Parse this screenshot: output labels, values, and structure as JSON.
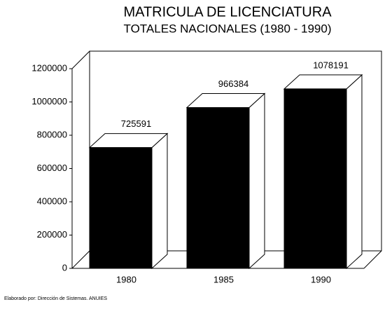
{
  "chart_data": {
    "type": "bar3d",
    "title": "MATRICULA DE LICENCIATURA",
    "subtitle": "TOTALES NACIONALES (1980 - 1990)",
    "categories": [
      "1980",
      "1985",
      "1990"
    ],
    "values": [
      725591,
      966384,
      1078191
    ],
    "color": "#000000",
    "ylim": [
      0,
      1200000
    ],
    "yticks": [
      0,
      200000,
      400000,
      600000,
      800000,
      1000000,
      1200000
    ],
    "grid": false,
    "footnote": "Elaborado por: Dirección de Sistemas. ANUIES"
  }
}
